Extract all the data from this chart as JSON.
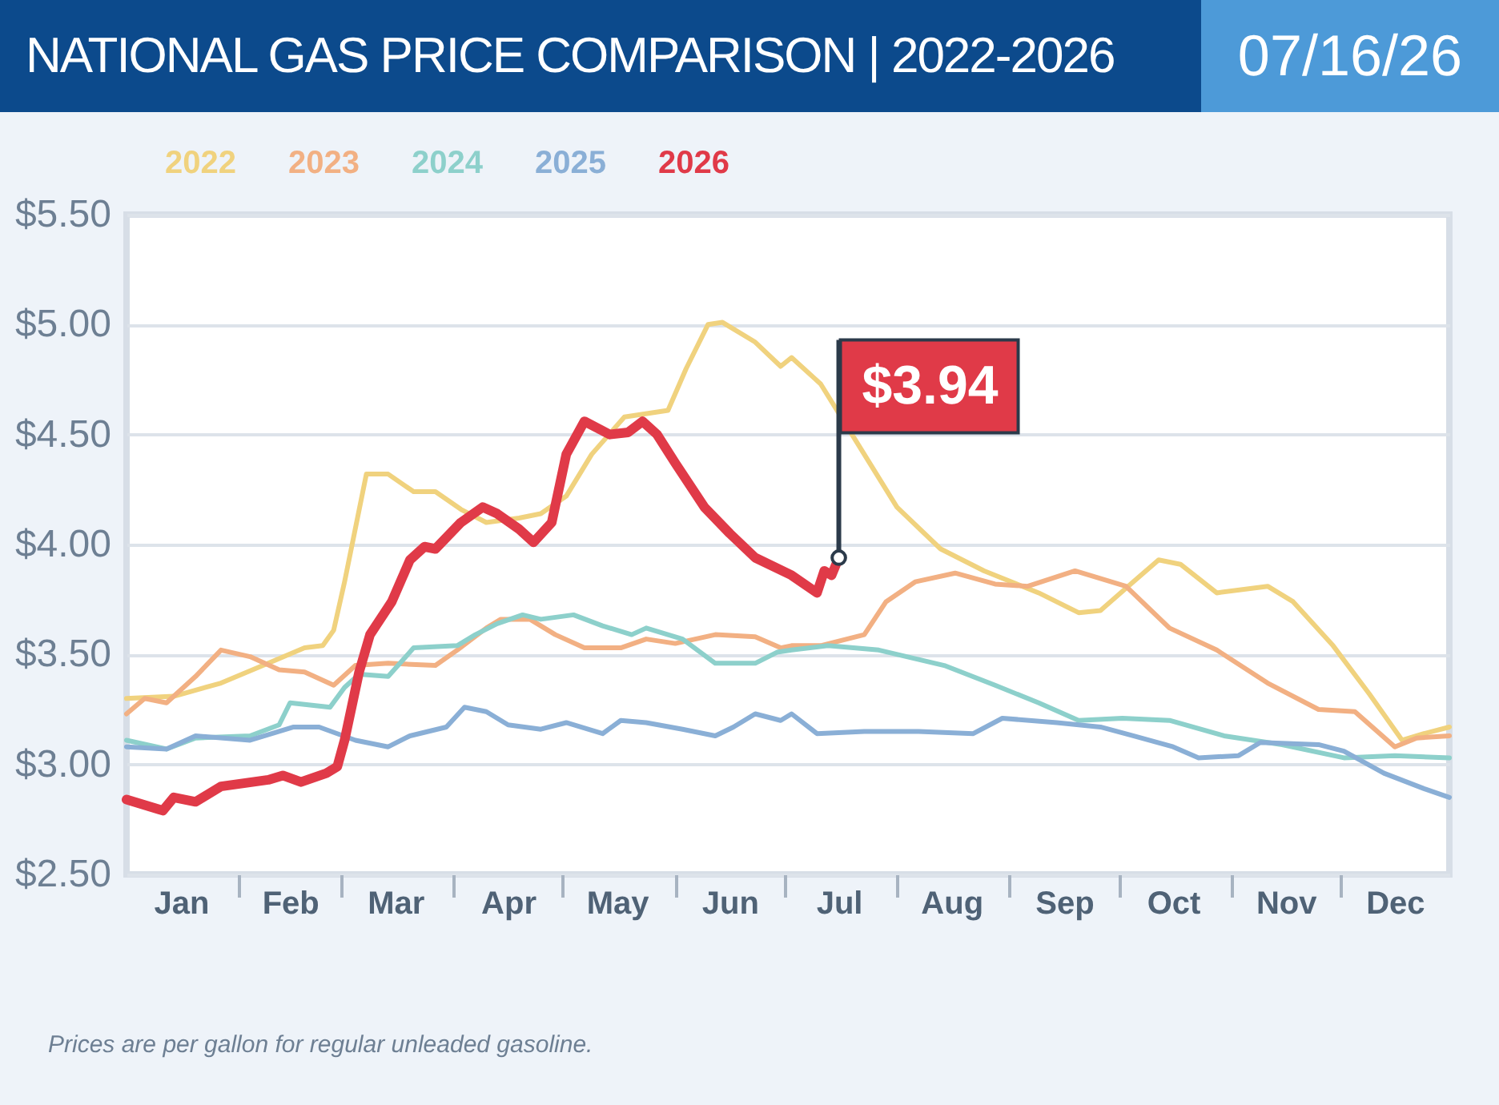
{
  "chart_data": {
    "type": "line",
    "title": "NATIONAL GAS PRICE COMPARISON | 2022-2026",
    "subtitle": "07/16/26",
    "annotations": [
      {
        "text": "$3.94",
        "x": "--07-16",
        "y": 3.94
      },
      "Prices are per gallon for regular unleaded gasoline."
    ],
    "xlim": [
      "--01-01",
      "--12-31"
    ],
    "xticks": [
      {
        "value": "--01-16",
        "label": "Jan"
      },
      {
        "value": "--02-01",
        "label": null
      },
      {
        "value": "--02-15",
        "label": "Feb"
      },
      {
        "value": "--03-01",
        "label": null
      },
      {
        "value": "--03-16",
        "label": "Mar"
      },
      {
        "value": "--04-01",
        "label": null
      },
      {
        "value": "--04-16",
        "label": "Apr"
      },
      {
        "value": "--05-01",
        "label": null
      },
      {
        "value": "--05-16",
        "label": "May"
      },
      {
        "value": "--06-01",
        "label": null
      },
      {
        "value": "--06-16",
        "label": "Jun"
      },
      {
        "value": "--07-01",
        "label": null
      },
      {
        "value": "--07-16",
        "label": "Jul"
      },
      {
        "value": "--08-01",
        "label": null
      },
      {
        "value": "--08-16",
        "label": "Aug"
      },
      {
        "value": "--09-01",
        "label": null
      },
      {
        "value": "--09-16",
        "label": "Sep"
      },
      {
        "value": "--10-01",
        "label": null
      },
      {
        "value": "--10-16",
        "label": "Oct"
      },
      {
        "value": "--11-01",
        "label": null
      },
      {
        "value": "--11-16",
        "label": "Nov"
      },
      {
        "value": "--12-01",
        "label": null
      },
      {
        "value": "--12-16",
        "label": "Dec"
      }
    ],
    "ylim": [
      2.5,
      5.5
    ],
    "yticks": [
      {
        "value": 2.5,
        "label": "$2.50"
      },
      {
        "value": 3,
        "label": "$3.00"
      },
      {
        "value": 3.5,
        "label": "$3.50"
      },
      {
        "value": 4,
        "label": "$4.00"
      },
      {
        "value": 4.5,
        "label": "$4.50"
      },
      {
        "value": 5,
        "label": "$5.00"
      },
      {
        "value": 5.5,
        "label": "$5.50"
      }
    ],
    "grid": "y",
    "legend": "top",
    "series": [
      {
        "name": "2022",
        "color": "#f0d27e",
        "x": [
          "--01-01",
          "--01-14",
          "--01-27",
          "--02-09",
          "--02-19",
          "--02-24",
          "--02-27",
          "--03-02",
          "--03-08",
          "--03-14",
          "--03-21",
          "--03-27",
          "--04-03",
          "--04-10",
          "--04-19",
          "--04-25",
          "--05-02",
          "--05-09",
          "--05-18",
          "--05-30",
          "--06-04",
          "--06-10",
          "--06-14",
          "--06-23",
          "--06-30",
          "--07-03",
          "--07-11",
          "--07-20",
          "--08-01",
          "--08-13",
          "--08-25",
          "--09-09",
          "--09-20",
          "--09-26",
          "--10-05",
          "--10-12",
          "--10-18",
          "--10-28",
          "--11-11",
          "--11-18",
          "--11-29",
          "--12-09",
          "--12-18",
          "--12-24",
          "--12-31"
        ],
        "values": [
          3.3,
          3.31,
          3.37,
          3.46,
          3.53,
          3.54,
          3.61,
          3.83,
          4.32,
          4.32,
          4.24,
          4.24,
          4.16,
          4.1,
          4.12,
          4.14,
          4.22,
          4.41,
          4.58,
          4.61,
          4.8,
          5.0,
          5.01,
          4.92,
          4.81,
          4.85,
          4.73,
          4.49,
          4.17,
          3.98,
          3.88,
          3.78,
          3.69,
          3.7,
          3.83,
          3.93,
          3.91,
          3.78,
          3.81,
          3.74,
          3.54,
          3.32,
          3.11,
          3.14,
          3.17
        ]
      },
      {
        "name": "2023",
        "color": "#f2b083",
        "x": [
          "--01-01",
          "--01-06",
          "--01-12",
          "--01-20",
          "--01-27",
          "--02-04",
          "--02-12",
          "--02-19",
          "--02-27",
          "--03-05",
          "--03-14",
          "--03-27",
          "--04-02",
          "--04-10",
          "--04-14",
          "--04-22",
          "--04-29",
          "--05-07",
          "--05-17",
          "--05-24",
          "--06-01",
          "--06-12",
          "--06-23",
          "--06-30",
          "--07-03",
          "--07-11",
          "--07-23",
          "--07-29",
          "--08-06",
          "--08-17",
          "--08-28",
          "--09-06",
          "--09-19",
          "--10-03",
          "--10-15",
          "--10-28",
          "--11-11",
          "--11-25",
          "--12-05",
          "--12-16",
          "--12-22",
          "--12-31"
        ],
        "values": [
          3.23,
          3.3,
          3.28,
          3.4,
          3.52,
          3.49,
          3.43,
          3.42,
          3.36,
          3.45,
          3.46,
          3.45,
          3.52,
          3.62,
          3.66,
          3.66,
          3.59,
          3.53,
          3.53,
          3.57,
          3.55,
          3.59,
          3.58,
          3.53,
          3.54,
          3.54,
          3.59,
          3.74,
          3.83,
          3.87,
          3.82,
          3.81,
          3.88,
          3.81,
          3.62,
          3.52,
          3.37,
          3.25,
          3.24,
          3.08,
          3.12,
          3.13
        ]
      },
      {
        "name": "2024",
        "color": "#8dd0cb",
        "x": [
          "--01-01",
          "--01-12",
          "--01-20",
          "--02-04",
          "--02-12",
          "--02-15",
          "--02-26",
          "--03-02",
          "--03-06",
          "--03-14",
          "--03-21",
          "--04-02",
          "--04-07",
          "--04-13",
          "--04-20",
          "--04-25",
          "--05-04",
          "--05-12",
          "--05-20",
          "--05-24",
          "--06-03",
          "--06-12",
          "--06-23",
          "--06-29",
          "--07-03",
          "--07-13",
          "--07-27",
          "--08-14",
          "--08-28",
          "--09-09",
          "--09-20",
          "--10-02",
          "--10-15",
          "--10-30",
          "--11-15",
          "--12-02",
          "--12-16",
          "--12-31"
        ],
        "values": [
          3.11,
          3.07,
          3.12,
          3.13,
          3.18,
          3.28,
          3.26,
          3.35,
          3.41,
          3.4,
          3.53,
          3.54,
          3.59,
          3.64,
          3.68,
          3.66,
          3.68,
          3.63,
          3.59,
          3.62,
          3.57,
          3.46,
          3.46,
          3.51,
          3.52,
          3.54,
          3.52,
          3.45,
          3.36,
          3.28,
          3.2,
          3.21,
          3.2,
          3.13,
          3.09,
          3.03,
          3.04,
          3.03
        ]
      },
      {
        "name": "2025",
        "color": "#8aafd6",
        "x": [
          "--01-01",
          "--01-12",
          "--01-20",
          "--02-04",
          "--02-16",
          "--02-23",
          "--03-05",
          "--03-14",
          "--03-20",
          "--03-30",
          "--04-04",
          "--04-10",
          "--04-16",
          "--04-25",
          "--05-02",
          "--05-12",
          "--05-17",
          "--05-24",
          "--06-03",
          "--06-12",
          "--06-17",
          "--06-23",
          "--06-30",
          "--07-03",
          "--07-10",
          "--07-23",
          "--08-07",
          "--08-22",
          "--08-30",
          "--09-14",
          "--09-26",
          "--10-05",
          "--10-16",
          "--10-23",
          "--11-03",
          "--11-09",
          "--11-25",
          "--12-02",
          "--12-13",
          "--12-24",
          "--12-31"
        ],
        "values": [
          3.08,
          3.07,
          3.13,
          3.11,
          3.17,
          3.17,
          3.11,
          3.08,
          3.13,
          3.17,
          3.26,
          3.24,
          3.18,
          3.16,
          3.19,
          3.14,
          3.2,
          3.19,
          3.16,
          3.13,
          3.17,
          3.23,
          3.2,
          3.23,
          3.14,
          3.15,
          3.15,
          3.14,
          3.21,
          3.19,
          3.17,
          3.13,
          3.08,
          3.03,
          3.04,
          3.1,
          3.09,
          3.06,
          2.96,
          2.89,
          2.85
        ]
      },
      {
        "name": "2026",
        "color": "#e03a48",
        "x": [
          "--01-01",
          "--01-11",
          "--01-14",
          "--01-20",
          "--01-27",
          "--02-09",
          "--02-13",
          "--02-18",
          "--02-25",
          "--02-28",
          "--03-02",
          "--03-06",
          "--03-09",
          "--03-15",
          "--03-20",
          "--03-24",
          "--03-27",
          "--04-03",
          "--04-09",
          "--04-13",
          "--04-19",
          "--04-23",
          "--04-28",
          "--05-02",
          "--05-07",
          "--05-14",
          "--05-19",
          "--05-23",
          "--05-27",
          "--06-01",
          "--06-09",
          "--06-16",
          "--06-23",
          "--07-03",
          "--07-10",
          "--07-12",
          "--07-14",
          "--07-16"
        ],
        "values": [
          2.84,
          2.79,
          2.85,
          2.83,
          2.9,
          2.93,
          2.95,
          2.92,
          2.96,
          2.99,
          3.11,
          3.42,
          3.59,
          3.74,
          3.93,
          3.99,
          3.98,
          4.1,
          4.17,
          4.14,
          4.07,
          4.01,
          4.1,
          4.41,
          4.56,
          4.5,
          4.51,
          4.56,
          4.5,
          4.37,
          4.17,
          4.05,
          3.94,
          3.86,
          3.78,
          3.88,
          3.86,
          3.94
        ]
      }
    ]
  }
}
